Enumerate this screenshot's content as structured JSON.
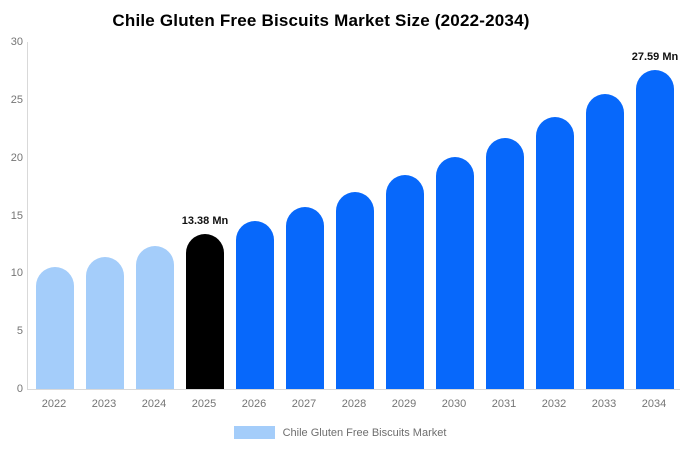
{
  "chart_data": {
    "type": "bar",
    "title": "Chile Gluten Free Biscuits Market Size (2022-2034)",
    "xlabel": "",
    "ylabel": "",
    "categories": [
      "2022",
      "2023",
      "2024",
      "2025",
      "2026",
      "2027",
      "2028",
      "2029",
      "2030",
      "2031",
      "2032",
      "2033",
      "2034"
    ],
    "values": [
      10.51,
      11.39,
      12.35,
      13.38,
      14.5,
      15.72,
      17.04,
      18.47,
      20.02,
      21.7,
      23.52,
      25.49,
      27.59
    ],
    "bar_colors": [
      "#a4cdfa",
      "#a4cdfa",
      "#a4cdfa",
      "#000000",
      "#0768fb",
      "#0768fb",
      "#0768fb",
      "#0768fb",
      "#0768fb",
      "#0768fb",
      "#0768fb",
      "#0768fb",
      "#0768fb"
    ],
    "ylim": [
      0,
      30
    ],
    "yticks": [
      0,
      5,
      10,
      15,
      20,
      25,
      30
    ],
    "grid": false,
    "annotations": [
      {
        "index": 3,
        "text": "13.38 Mn"
      },
      {
        "index": 12,
        "text": "27.59 Mn"
      }
    ],
    "legend": {
      "position": "bottom",
      "items": [
        {
          "label": "Chile Gluten Free Biscuits Market",
          "color": "#a4cdfa"
        }
      ]
    },
    "colors": {
      "historical_bar": "#a4cdfa",
      "base_year_bar": "#000000",
      "forecast_bar": "#0768fb",
      "axis_line": "#d9d9d9",
      "tick_text": "#757575",
      "title_text": "#000000"
    }
  }
}
